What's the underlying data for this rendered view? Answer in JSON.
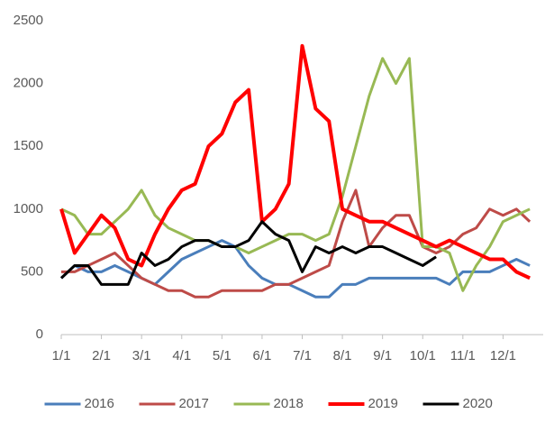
{
  "chart_data": {
    "type": "line",
    "categories": [
      "1/1",
      null,
      null,
      "2/1",
      null,
      null,
      "3/1",
      null,
      null,
      "4/1",
      null,
      null,
      "5/1",
      null,
      null,
      "6/1",
      null,
      null,
      "7/1",
      null,
      null,
      "8/1",
      null,
      null,
      "9/1",
      null,
      null,
      "10/1",
      null,
      null,
      "11/1",
      null,
      null,
      "12/1",
      null,
      null
    ],
    "series": [
      {
        "name": "2016",
        "color": "#4a7ebb",
        "values": [
          450,
          550,
          500,
          500,
          550,
          500,
          450,
          400,
          500,
          600,
          650,
          700,
          750,
          700,
          550,
          450,
          400,
          400,
          350,
          300,
          300,
          400,
          400,
          450,
          450,
          450,
          450,
          450,
          450,
          400,
          500,
          500,
          500,
          550,
          600,
          550
        ]
      },
      {
        "name": "2017",
        "color": "#be4b48",
        "values": [
          500,
          500,
          550,
          600,
          650,
          550,
          450,
          400,
          350,
          350,
          300,
          300,
          350,
          350,
          350,
          350,
          400,
          400,
          450,
          500,
          550,
          900,
          1150,
          700,
          850,
          950,
          950,
          700,
          650,
          700,
          800,
          850,
          1000,
          950,
          1000,
          900
        ]
      },
      {
        "name": "2018",
        "color": "#98b954",
        "values": [
          1000,
          950,
          800,
          800,
          900,
          1000,
          1150,
          950,
          850,
          800,
          750,
          750,
          700,
          700,
          650,
          700,
          750,
          800,
          800,
          750,
          800,
          1100,
          1500,
          1900,
          2200,
          2000,
          2200,
          700,
          700,
          650,
          350,
          550,
          700,
          900,
          950,
          1000
        ]
      },
      {
        "name": "2019",
        "color": "#ff0000",
        "values": [
          1000,
          650,
          800,
          950,
          850,
          600,
          550,
          800,
          1000,
          1150,
          1200,
          1500,
          1600,
          1850,
          1950,
          900,
          1000,
          1200,
          2300,
          1800,
          1700,
          1000,
          950,
          900,
          900,
          850,
          800,
          750,
          700,
          750,
          700,
          650,
          600,
          600,
          500,
          450
        ]
      },
      {
        "name": "2020",
        "color": "#000000",
        "values": [
          450,
          550,
          550,
          400,
          400,
          400,
          650,
          550,
          600,
          700,
          750,
          750,
          700,
          700,
          750,
          900,
          800,
          750,
          500,
          700,
          650,
          700,
          650,
          700,
          700,
          650,
          600,
          550,
          620,
          null,
          null,
          null,
          null,
          null,
          null,
          null
        ]
      }
    ],
    "ylim": [
      0,
      2500
    ],
    "yticks": [
      0,
      500,
      1000,
      1500,
      2000,
      2500
    ]
  }
}
